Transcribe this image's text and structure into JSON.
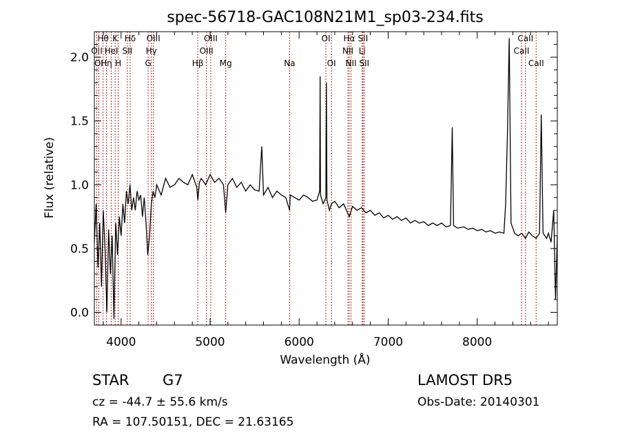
{
  "chart_data": {
    "type": "line",
    "title": "spec-56718-GAC108N21M1_sp03-234.fits",
    "xlabel": "Wavelength (Å)",
    "ylabel": "Flux (relative)",
    "xlim": [
      3700,
      8900
    ],
    "ylim": [
      -0.1,
      2.2
    ],
    "xticks": [
      4000,
      5000,
      6000,
      7000,
      8000
    ],
    "yticks": [
      0.0,
      0.5,
      1.0,
      1.5,
      2.0
    ],
    "ytick_labels": [
      "0.0",
      "0.5",
      "1.0",
      "1.5",
      "2.0"
    ],
    "grid": false,
    "line_color": "#000000",
    "marker_color": "#b22222",
    "spectrum": [
      [
        3700,
        0.55
      ],
      [
        3720,
        0.85
      ],
      [
        3740,
        0.35
      ],
      [
        3760,
        0.7
      ],
      [
        3780,
        0.2
      ],
      [
        3800,
        0.8
      ],
      [
        3820,
        0.5
      ],
      [
        3840,
        0.0
      ],
      [
        3860,
        0.65
      ],
      [
        3880,
        0.3
      ],
      [
        3900,
        0.6
      ],
      [
        3920,
        -0.05
      ],
      [
        3940,
        0.7
      ],
      [
        3960,
        0.45
      ],
      [
        3980,
        0.75
      ],
      [
        4000,
        0.6
      ],
      [
        4020,
        0.85
      ],
      [
        4040,
        0.7
      ],
      [
        4060,
        0.95
      ],
      [
        4080,
        0.85
      ],
      [
        4100,
        1.0
      ],
      [
        4120,
        0.8
      ],
      [
        4140,
        0.9
      ],
      [
        4160,
        0.8
      ],
      [
        4180,
        0.95
      ],
      [
        4200,
        0.88
      ],
      [
        4220,
        0.92
      ],
      [
        4240,
        0.75
      ],
      [
        4260,
        0.9
      ],
      [
        4280,
        0.7
      ],
      [
        4300,
        0.45
      ],
      [
        4320,
        0.6
      ],
      [
        4340,
        0.85
      ],
      [
        4360,
        0.95
      ],
      [
        4380,
        0.9
      ],
      [
        4400,
        1.0
      ],
      [
        4450,
        0.92
      ],
      [
        4500,
        1.05
      ],
      [
        4550,
        0.98
      ],
      [
        4600,
        1.0
      ],
      [
        4650,
        1.05
      ],
      [
        4700,
        1.02
      ],
      [
        4750,
        1.0
      ],
      [
        4800,
        1.08
      ],
      [
        4850,
        0.98
      ],
      [
        4862,
        0.88
      ],
      [
        4880,
        1.02
      ],
      [
        4900,
        1.05
      ],
      [
        4950,
        1.0
      ],
      [
        5000,
        1.08
      ],
      [
        5050,
        1.02
      ],
      [
        5100,
        1.05
      ],
      [
        5150,
        1.0
      ],
      [
        5175,
        0.78
      ],
      [
        5200,
        1.0
      ],
      [
        5250,
        1.05
      ],
      [
        5300,
        0.98
      ],
      [
        5350,
        1.02
      ],
      [
        5400,
        0.95
      ],
      [
        5450,
        1.0
      ],
      [
        5500,
        0.96
      ],
      [
        5550,
        0.95
      ],
      [
        5580,
        1.3
      ],
      [
        5600,
        0.92
      ],
      [
        5650,
        0.98
      ],
      [
        5700,
        0.9
      ],
      [
        5750,
        0.95
      ],
      [
        5800,
        0.92
      ],
      [
        5850,
        0.9
      ],
      [
        5893,
        0.8
      ],
      [
        5900,
        0.92
      ],
      [
        5950,
        0.9
      ],
      [
        6000,
        0.88
      ],
      [
        6050,
        0.92
      ],
      [
        6100,
        0.9
      ],
      [
        6150,
        0.87
      ],
      [
        6200,
        0.88
      ],
      [
        6230,
        0.95
      ],
      [
        6236,
        1.85
      ],
      [
        6240,
        0.92
      ],
      [
        6270,
        0.85
      ],
      [
        6300,
        0.9
      ],
      [
        6306,
        1.8
      ],
      [
        6312,
        0.88
      ],
      [
        6340,
        0.8
      ],
      [
        6363,
        0.85
      ],
      [
        6400,
        0.87
      ],
      [
        6450,
        0.82
      ],
      [
        6500,
        0.85
      ],
      [
        6563,
        0.75
      ],
      [
        6600,
        0.83
      ],
      [
        6650,
        0.8
      ],
      [
        6700,
        0.82
      ],
      [
        6750,
        0.78
      ],
      [
        6800,
        0.8
      ],
      [
        6850,
        0.76
      ],
      [
        6900,
        0.78
      ],
      [
        6950,
        0.74
      ],
      [
        7000,
        0.76
      ],
      [
        7050,
        0.73
      ],
      [
        7100,
        0.75
      ],
      [
        7150,
        0.72
      ],
      [
        7200,
        0.74
      ],
      [
        7250,
        0.7
      ],
      [
        7300,
        0.72
      ],
      [
        7350,
        0.7
      ],
      [
        7400,
        0.71
      ],
      [
        7450,
        0.68
      ],
      [
        7500,
        0.7
      ],
      [
        7550,
        0.68
      ],
      [
        7600,
        0.7
      ],
      [
        7650,
        0.67
      ],
      [
        7700,
        0.68
      ],
      [
        7720,
        1.45
      ],
      [
        7735,
        0.68
      ],
      [
        7780,
        0.66
      ],
      [
        7850,
        0.67
      ],
      [
        7900,
        0.65
      ],
      [
        7950,
        0.66
      ],
      [
        8000,
        0.64
      ],
      [
        8050,
        0.65
      ],
      [
        8100,
        0.63
      ],
      [
        8150,
        0.64
      ],
      [
        8200,
        0.62
      ],
      [
        8250,
        0.63
      ],
      [
        8300,
        0.62
      ],
      [
        8320,
        0.85
      ],
      [
        8340,
        1.4
      ],
      [
        8360,
        2.15
      ],
      [
        8380,
        0.7
      ],
      [
        8420,
        0.62
      ],
      [
        8460,
        0.6
      ],
      [
        8500,
        0.62
      ],
      [
        8542,
        0.58
      ],
      [
        8580,
        0.63
      ],
      [
        8620,
        0.6
      ],
      [
        8662,
        0.58
      ],
      [
        8700,
        0.62
      ],
      [
        8720,
        1.55
      ],
      [
        8740,
        0.62
      ],
      [
        8780,
        0.58
      ],
      [
        8800,
        0.62
      ],
      [
        8830,
        0.55
      ],
      [
        8860,
        0.8
      ],
      [
        8880,
        0.1
      ],
      [
        8900,
        0.6
      ]
    ],
    "line_markers": [
      {
        "label": "Hθ",
        "wavelength": 3798,
        "row": 0
      },
      {
        "label": "K",
        "wavelength": 3934,
        "row": 0
      },
      {
        "label": "Hδ",
        "wavelength": 4102,
        "row": 0
      },
      {
        "label": "OIII",
        "wavelength": 4363,
        "row": 0
      },
      {
        "label": "OIII",
        "wavelength": 5007,
        "row": 0
      },
      {
        "label": "OI",
        "wavelength": 6300,
        "row": 0
      },
      {
        "label": "Hα",
        "wavelength": 6563,
        "row": 0
      },
      {
        "label": "SII",
        "wavelength": 6717,
        "row": 0
      },
      {
        "label": "CaII",
        "wavelength": 8542,
        "row": 0
      },
      {
        "label": "OII",
        "wavelength": 3727,
        "row": 1
      },
      {
        "label": "HeI",
        "wavelength": 3889,
        "row": 1
      },
      {
        "label": "SII",
        "wavelength": 4070,
        "row": 1
      },
      {
        "label": "Hγ",
        "wavelength": 4340,
        "row": 1
      },
      {
        "label": "OIII",
        "wavelength": 4959,
        "row": 1
      },
      {
        "label": "NII",
        "wavelength": 6548,
        "row": 1
      },
      {
        "label": "Li",
        "wavelength": 6708,
        "row": 1
      },
      {
        "label": "CaII",
        "wavelength": 8498,
        "row": 1
      },
      {
        "label": "OI",
        "wavelength": 3750,
        "row": 2
      },
      {
        "label": "Hη",
        "wavelength": 3835,
        "row": 2
      },
      {
        "label": "H",
        "wavelength": 3968,
        "row": 2
      },
      {
        "label": "G",
        "wavelength": 4304,
        "row": 2
      },
      {
        "label": "Hβ",
        "wavelength": 4861,
        "row": 2
      },
      {
        "label": "Mg",
        "wavelength": 5175,
        "row": 2
      },
      {
        "label": "Na",
        "wavelength": 5893,
        "row": 2
      },
      {
        "label": "OI",
        "wavelength": 6363,
        "row": 2
      },
      {
        "label": "NII",
        "wavelength": 6583,
        "row": 2
      },
      {
        "label": "SII",
        "wavelength": 6731,
        "row": 2
      },
      {
        "label": "CaII",
        "wavelength": 8662,
        "row": 2
      }
    ]
  },
  "info": {
    "object_class": "STAR",
    "subclass": "G7",
    "survey": "LAMOST DR5",
    "cz_text": "cz = -44.7 ± 55.6 km/s",
    "obs_date": "Obs-Date: 20140301",
    "coords": "RA = 107.50151, DEC =  21.63165"
  }
}
